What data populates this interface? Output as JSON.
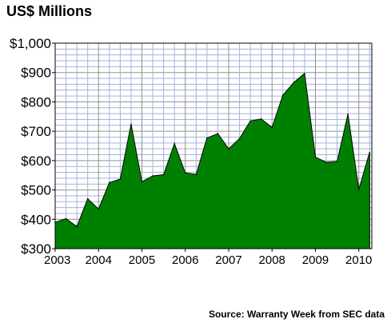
{
  "chart_data": {
    "type": "area",
    "title": "US$ Millions",
    "source": "Source: Warranty Week from SEC data",
    "y_tick_labels": [
      "$300",
      "$400",
      "$500",
      "$600",
      "$700",
      "$800",
      "$900",
      "$1,000"
    ],
    "y_ticks": [
      300,
      400,
      500,
      600,
      700,
      800,
      900,
      1000
    ],
    "ylim": [
      300,
      1000
    ],
    "x_tick_labels": [
      "2003",
      "2004",
      "2005",
      "2006",
      "2007",
      "2008",
      "2009",
      "2010"
    ],
    "xlim": [
      2003,
      2010.3
    ],
    "grid": true,
    "area_color": "#008000",
    "grid_color": "#a0b4dc",
    "major_grid_color": "#909090",
    "series": [
      {
        "x": [
          2003.0,
          2003.25,
          2003.5,
          2003.75,
          2004.0,
          2004.25,
          2004.5,
          2004.75,
          2005.0,
          2005.25,
          2005.5,
          2005.75,
          2006.0,
          2006.25,
          2006.5,
          2006.75,
          2007.0,
          2007.25,
          2007.5,
          2007.75,
          2008.0,
          2008.25,
          2008.5,
          2008.75,
          2009.0,
          2009.25,
          2009.5,
          2009.75,
          2010.0,
          2010.25
        ],
        "values": [
          390,
          402,
          375,
          470,
          435,
          525,
          537,
          724,
          528,
          548,
          552,
          658,
          558,
          553,
          677,
          692,
          640,
          675,
          735,
          742,
          713,
          823,
          866,
          897,
          612,
          594,
          597,
          758,
          502,
          628
        ]
      }
    ]
  }
}
